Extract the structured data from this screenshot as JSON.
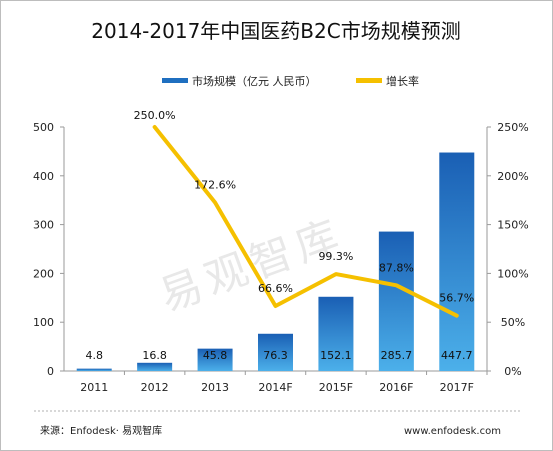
{
  "chart_data": {
    "type": "bar",
    "title": "2014-2017年中国医药B2C市场规模预测",
    "categories": [
      "2011",
      "2012",
      "2013",
      "2014F",
      "2015F",
      "2016F",
      "2017F"
    ],
    "series": [
      {
        "name": "市场规模（亿元 人民币）",
        "type": "bar",
        "axis": "left",
        "values": [
          4.8,
          16.8,
          45.8,
          76.3,
          152.1,
          285.7,
          447.7
        ],
        "labels": [
          "4.8",
          "16.8",
          "45.8",
          "76.3",
          "152.1",
          "285.7",
          "447.7"
        ],
        "color": "#1f6fc0"
      },
      {
        "name": "增长率",
        "type": "line",
        "axis": "right",
        "values": [
          null,
          250.0,
          172.6,
          66.6,
          99.3,
          87.8,
          56.7
        ],
        "labels": [
          "",
          "250.0%",
          "172.6%",
          "66.6%",
          "99.3%",
          "87.8%",
          "56.7%"
        ],
        "color": "#f5c000"
      }
    ],
    "y_left": {
      "ylim": [
        0,
        500
      ],
      "ticks": [
        "0",
        "100",
        "200",
        "300",
        "400",
        "500"
      ]
    },
    "y_right": {
      "ylim": [
        0,
        250
      ],
      "ticks": [
        "0%",
        "50%",
        "100%",
        "150%",
        "200%",
        "250%"
      ]
    },
    "legend_position": "top",
    "grid": false
  },
  "watermark": "易观智库",
  "footer": {
    "source": "来源：Enfodesk· 易观智库",
    "website": "www.enfodesk.com"
  }
}
